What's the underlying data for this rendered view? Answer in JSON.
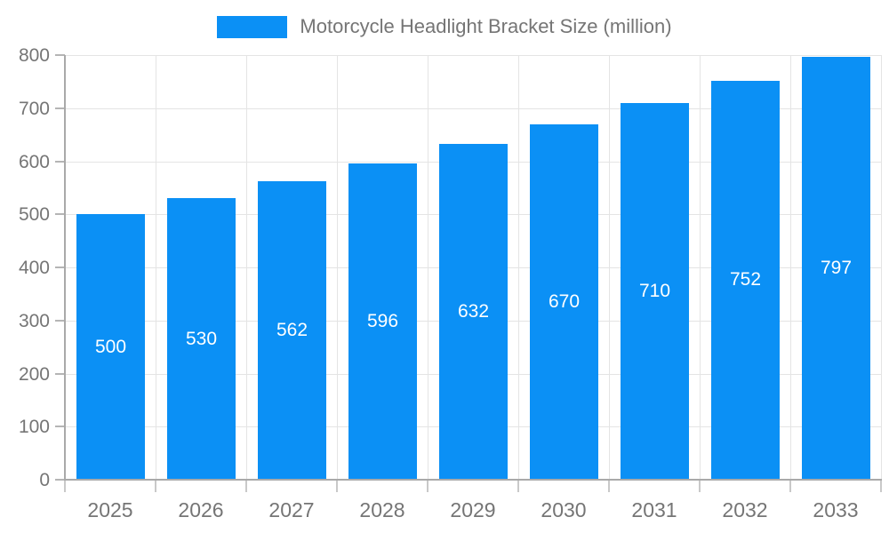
{
  "legend": {
    "label": "Motorcycle Headlight Bracket Size (million)"
  },
  "colors": {
    "bar": "#0b90f5",
    "axis": "#a9a9a9",
    "grid": "#e4e4e4",
    "tick_y": "#b5b5b5",
    "tick_x": "#c9c9c9",
    "axis_label": "#757575",
    "value_label": "#ffffff"
  },
  "chart_data": {
    "type": "bar",
    "title": "Motorcycle Headlight Bracket Size (million)",
    "categories": [
      "2025",
      "2026",
      "2027",
      "2028",
      "2029",
      "2030",
      "2031",
      "2032",
      "2033"
    ],
    "values": [
      500,
      530,
      562,
      596,
      632,
      670,
      710,
      752,
      797
    ],
    "xlabel": "",
    "ylabel": "",
    "ylim": [
      0,
      800
    ],
    "ytick_step": 100,
    "ytick_labels": [
      "0",
      "100",
      "200",
      "300",
      "400",
      "500",
      "600",
      "700",
      "800"
    ],
    "grid": true,
    "legend_position": "top",
    "value_labels_shown": true,
    "value_label_position": "center-of-bar"
  }
}
